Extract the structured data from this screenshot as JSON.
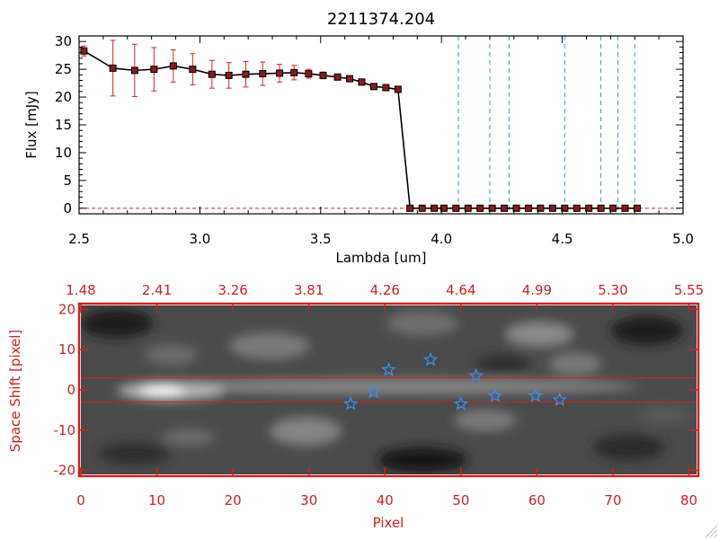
{
  "chart_data": [
    {
      "type": "line",
      "title": "2211374.204",
      "xlabel": "Lambda [um]",
      "ylabel": "Flux [mJy]",
      "xlim": [
        2.5,
        5.0
      ],
      "ylim": [
        -1,
        31
      ],
      "xticks": [
        2.5,
        3.0,
        3.5,
        4.0,
        4.5,
        5.0
      ],
      "xtick_labels": [
        "2.5",
        "3.0",
        "3.5",
        "4.0",
        "4.5",
        "5.0"
      ],
      "yticks": [
        0,
        5,
        10,
        15,
        20,
        25,
        30
      ],
      "ytick_labels": [
        "0",
        "5",
        "10",
        "15",
        "20",
        "25",
        "30"
      ],
      "colors": {
        "line": "#000000",
        "marker": "#8b1a1a",
        "errorbar": "#dd2222",
        "vline": "#3399dd",
        "zero_line": "#dd2222"
      },
      "series": [
        {
          "name": "flux",
          "x": [
            2.52,
            2.64,
            2.73,
            2.81,
            2.89,
            2.97,
            3.05,
            3.12,
            3.19,
            3.26,
            3.33,
            3.39,
            3.45,
            3.51,
            3.57,
            3.62,
            3.67,
            3.72,
            3.77,
            3.82,
            3.87,
            3.92,
            3.97,
            4.01,
            4.06,
            4.11,
            4.16,
            4.21,
            4.26,
            4.31,
            4.36,
            4.41,
            4.46,
            4.51,
            4.56,
            4.61,
            4.66,
            4.71,
            4.76,
            4.81
          ],
          "y": [
            28.3,
            25.2,
            24.8,
            25.0,
            25.6,
            25.0,
            24.1,
            23.9,
            24.1,
            24.2,
            24.3,
            24.4,
            24.2,
            23.9,
            23.6,
            23.3,
            22.7,
            21.9,
            21.7,
            21.4,
            0,
            0,
            0,
            0,
            0,
            0,
            0,
            0,
            0,
            0,
            0,
            0,
            0,
            0,
            0,
            0,
            0,
            0,
            0,
            0
          ],
          "yerr": [
            0.9,
            5.0,
            4.7,
            3.9,
            2.9,
            2.8,
            2.5,
            2.3,
            2.3,
            2.1,
            1.6,
            1.3,
            0.8,
            0.6,
            0.5,
            0.4,
            0.4,
            0.4,
            0.3,
            0.3,
            0,
            0,
            0,
            0,
            0,
            0,
            0,
            0,
            0,
            0,
            0,
            0,
            0,
            0,
            0,
            0,
            0,
            0,
            0,
            0
          ]
        }
      ],
      "vlines": [
        4.07,
        4.2,
        4.28,
        4.51,
        4.66,
        4.73,
        4.8
      ]
    },
    {
      "type": "heatmap",
      "xlabel": "Pixel",
      "ylabel": "Space Shift [pixel]",
      "xlim": [
        0,
        81
      ],
      "ylim": [
        -21,
        21
      ],
      "xticks": [
        0,
        10,
        20,
        30,
        40,
        50,
        60,
        70,
        80
      ],
      "xtick_labels": [
        "0",
        "10",
        "20",
        "30",
        "40",
        "50",
        "60",
        "70",
        "80"
      ],
      "yticks": [
        -20,
        -10,
        0,
        10,
        20
      ],
      "ytick_labels": [
        "-20",
        "-10",
        "0",
        "10",
        "20"
      ],
      "top_axis_label_values": [
        0,
        10,
        20,
        30,
        40,
        50,
        60,
        70,
        80
      ],
      "top_axis_labels": [
        "1.48",
        "2.41",
        "3.26",
        "3.81",
        "4.26",
        "4.64",
        "4.99",
        "5.30",
        "5.55"
      ],
      "aperture_y": [
        -3,
        3
      ],
      "colors": {
        "axes": "#cc2222",
        "stars": "#3b8ee8"
      },
      "stars": [
        {
          "x": 35.5,
          "y": -3.5
        },
        {
          "x": 38.5,
          "y": -0.5
        },
        {
          "x": 40.5,
          "y": 5.0
        },
        {
          "x": 46.0,
          "y": 7.5
        },
        {
          "x": 50.0,
          "y": -3.5
        },
        {
          "x": 52.0,
          "y": 3.5
        },
        {
          "x": 54.5,
          "y": -1.5
        },
        {
          "x": 59.8,
          "y": -1.5
        },
        {
          "x": 63.0,
          "y": -2.5
        }
      ]
    }
  ]
}
